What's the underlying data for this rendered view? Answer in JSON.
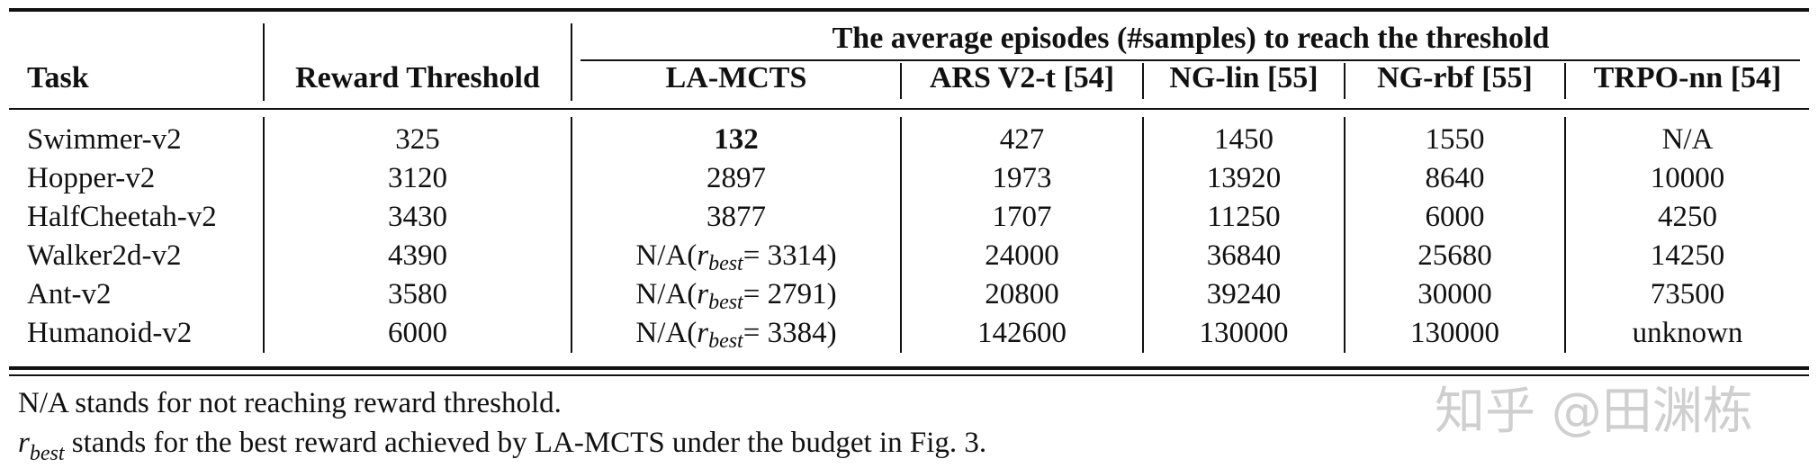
{
  "table": {
    "group_header": "The average episodes (#samples) to reach the threshold",
    "columns": [
      "Task",
      "Reward Threshold",
      "LA-MCTS",
      "ARS V2-t [54]",
      "NG-lin [55]",
      "NG-rbf [55]",
      "TRPO-nn [54]"
    ],
    "rows": [
      {
        "task": "Swimmer-v2",
        "threshold": "325",
        "la_mcts": {
          "prefix": "",
          "symbol": "",
          "sub": "",
          "suffix": "132"
        },
        "ars": "427",
        "ng_lin": "1450",
        "ng_rbf": "1550",
        "trpo": "N/A"
      },
      {
        "task": "Hopper-v2",
        "threshold": "3120",
        "la_mcts": {
          "prefix": "",
          "symbol": "",
          "sub": "",
          "suffix": "2897"
        },
        "ars": "1973",
        "ng_lin": "13920",
        "ng_rbf": "8640",
        "trpo": "10000"
      },
      {
        "task": "HalfCheetah-v2",
        "threshold": "3430",
        "la_mcts": {
          "prefix": "",
          "symbol": "",
          "sub": "",
          "suffix": "3877"
        },
        "ars": "1707",
        "ng_lin": "11250",
        "ng_rbf": "6000",
        "trpo": "4250"
      },
      {
        "task": "Walker2d-v2",
        "threshold": "4390",
        "la_mcts": {
          "prefix": "N/A(",
          "symbol": "r",
          "sub": "best",
          "suffix": " = 3314)"
        },
        "ars": "24000",
        "ng_lin": "36840",
        "ng_rbf": "25680",
        "trpo": "14250"
      },
      {
        "task": "Ant-v2",
        "threshold": "3580",
        "la_mcts": {
          "prefix": "N/A(",
          "symbol": "r",
          "sub": "best",
          "suffix": " = 2791)"
        },
        "ars": "20800",
        "ng_lin": "39240",
        "ng_rbf": "30000",
        "trpo": "73500"
      },
      {
        "task": "Humanoid-v2",
        "threshold": "6000",
        "la_mcts": {
          "prefix": "N/A(",
          "symbol": "r",
          "sub": "best",
          "suffix": " = 3384)"
        },
        "ars": "142600",
        "ng_lin": "130000",
        "ng_rbf": "130000",
        "trpo": "unknown"
      }
    ]
  },
  "notes": {
    "line1": "N/A stands for not reaching reward threshold.",
    "line2_symbol": "r",
    "line2_sub": "best",
    "line2_text": " stands for the best reward achieved by LA-MCTS under the budget in Fig. 3."
  },
  "watermark": "知乎 @田渊栋"
}
